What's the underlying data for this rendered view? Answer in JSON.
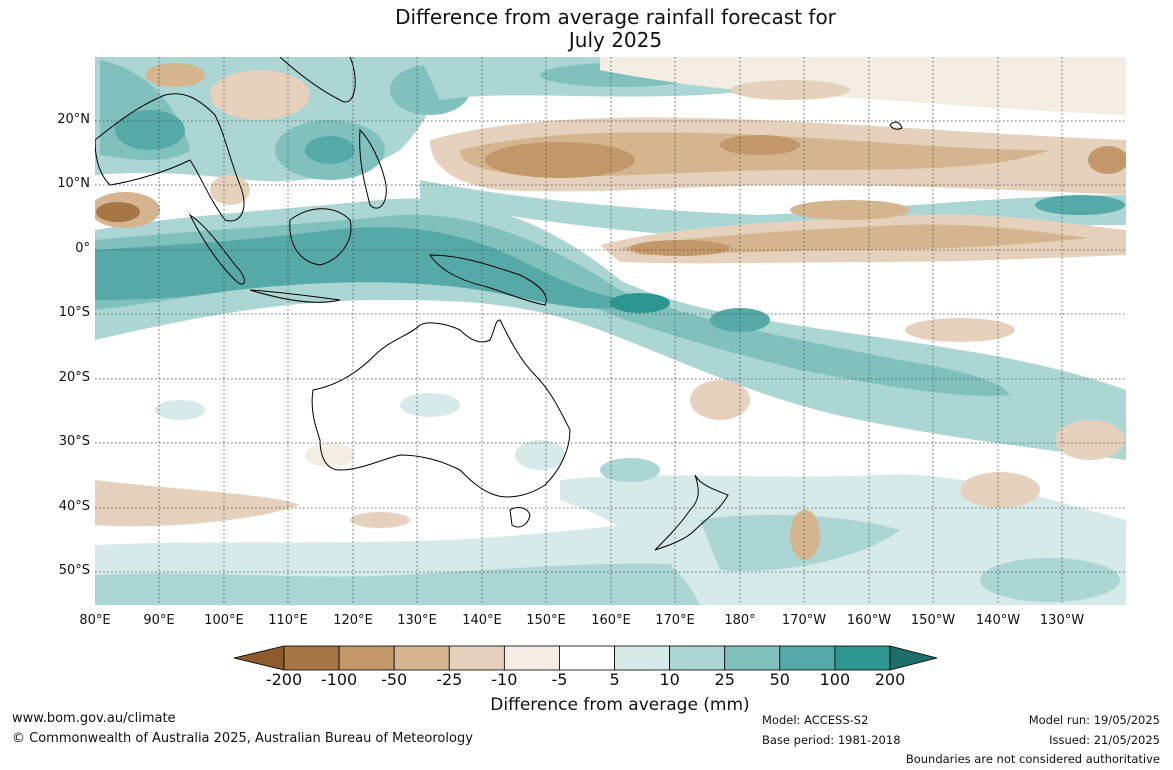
{
  "title": {
    "line1": "Difference from average rainfall forecast for",
    "line2": "July 2025"
  },
  "map": {
    "type": "rainfall-anomaly-map",
    "region": "Indian Ocean, Maritime Continent, Australia and western/central Pacific",
    "lon_range": [
      80,
      -120
    ],
    "lat_range": [
      -55,
      30
    ],
    "gridlines": true,
    "lat_labels": [
      "20°N",
      "10°N",
      "0°",
      "10°S",
      "20°S",
      "30°S",
      "40°S",
      "50°S"
    ],
    "lon_labels": [
      "80°E",
      "90°E",
      "100°E",
      "110°E",
      "120°E",
      "130°E",
      "140°E",
      "150°E",
      "160°E",
      "170°E",
      "180°",
      "170°W",
      "160°W",
      "150°W",
      "140°W",
      "130°W"
    ],
    "colorbar": {
      "label": "Difference from average (mm)",
      "ticks": [
        "-200",
        "-100",
        "-50",
        "-25",
        "-10",
        "-5",
        "5",
        "10",
        "25",
        "50",
        "100",
        "200"
      ],
      "colors": [
        "#8c5a2b",
        "#a87544",
        "#c2976a",
        "#d5b590",
        "#e6d2bc",
        "#f3ede4",
        "#ffffff",
        "#d6ebe9",
        "#abd6d3",
        "#80c1bd",
        "#55aaa8",
        "#2e9690",
        "#206e6b"
      ]
    }
  },
  "footer": {
    "url": "www.bom.gov.au/climate",
    "copyright": "© Commonwealth of Australia 2025, Australian Bureau of Meteorology",
    "model": "Model: ACCESS-S2",
    "base_period": "Base period: 1981-2018",
    "model_run": "Model run: 19/05/2025",
    "issued": "Issued: 21/05/2025",
    "disclaimer": "Boundaries are not considered authoritative"
  }
}
